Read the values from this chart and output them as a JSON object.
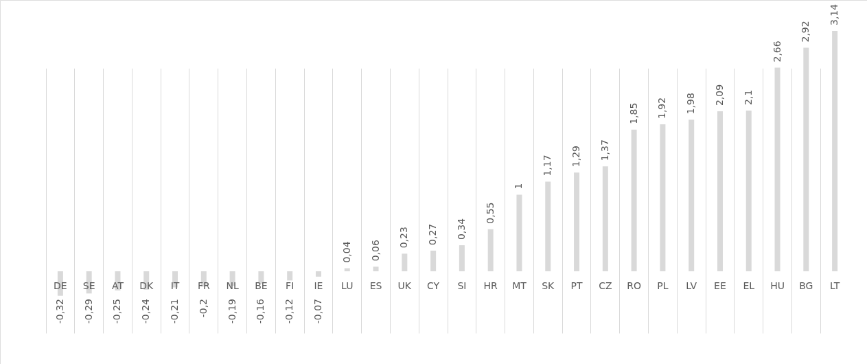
{
  "chart_data": {
    "type": "bar",
    "categories": [
      "DE",
      "SE",
      "AT",
      "DK",
      "IT",
      "FR",
      "NL",
      "BE",
      "FI",
      "IE",
      "LU",
      "ES",
      "UK",
      "CY",
      "SI",
      "HR",
      "MT",
      "SK",
      "PT",
      "CZ",
      "RO",
      "PL",
      "LV",
      "EE",
      "EL",
      "HU",
      "BG",
      "LT"
    ],
    "values": [
      -0.32,
      -0.29,
      -0.25,
      -0.24,
      -0.21,
      -0.2,
      -0.19,
      -0.16,
      -0.12,
      -0.07,
      0.04,
      0.06,
      0.23,
      0.27,
      0.34,
      0.55,
      1,
      1.17,
      1.29,
      1.37,
      1.85,
      1.92,
      1.98,
      2.09,
      2.1,
      2.66,
      2.92,
      3.14
    ],
    "value_labels": [
      "-0,32",
      "-0,29",
      "-0,25",
      "-0,24",
      "-0,21",
      "-0,2",
      "-0,19",
      "-0,16",
      "-0,12",
      "-0,07",
      "0,04",
      "0,06",
      "0,23",
      "0,27",
      "0,34",
      "0,55",
      "1",
      "1,17",
      "1,29",
      "1,37",
      "1,85",
      "1,92",
      "1,98",
      "2,09",
      "2,1",
      "2,66",
      "2,92",
      "3,14"
    ],
    "color": "#d9d9d9",
    "grid": "x"
  }
}
